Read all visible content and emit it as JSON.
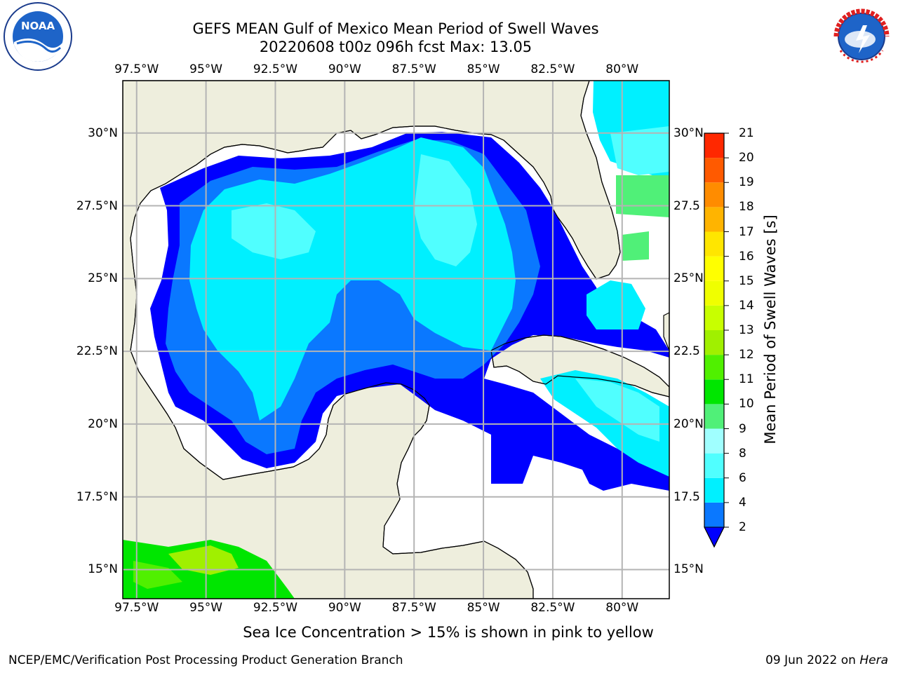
{
  "title": {
    "line1": "GEFS MEAN Gulf of Mexico Mean Period of Swell Waves",
    "line2": "20220608 t00z 096h fcst   Max: 13.05"
  },
  "logos": {
    "left": "NOAA",
    "right": "NATIONAL WEATHER SERVICE"
  },
  "map": {
    "lon_labels": [
      "97.5°W",
      "95°W",
      "92.5°W",
      "90°W",
      "87.5°W",
      "85°W",
      "82.5°W",
      "80°W"
    ],
    "lon_values": [
      -97.5,
      -95,
      -92.5,
      -90,
      -87.5,
      -85,
      -82.5,
      -80
    ],
    "lat_labels_left": [
      "30°N",
      "27.5°N",
      "25°N",
      "22.5°N",
      "20°N",
      "17.5°N",
      "15°N"
    ],
    "lat_labels_right": [
      "30°N",
      "27.5",
      "25°N",
      "22.5",
      "20°N",
      "17.5",
      "15°N"
    ],
    "lat_values": [
      30,
      27.5,
      25,
      22.5,
      20,
      17.5,
      15
    ],
    "extent": {
      "lon_min": -98,
      "lon_max": -78.3,
      "lat_min": 14,
      "lat_max": 31.8
    },
    "colors": {
      "land": "#eeeedd",
      "ocean_nodata": "#ffffff",
      "grid": "#b4b4b4"
    }
  },
  "colorbar": {
    "title": "Mean Period of Swell Waves [s]",
    "levels": [
      "2",
      "4",
      "6",
      "8",
      "9",
      "10",
      "11",
      "12",
      "13",
      "14",
      "15",
      "16",
      "17",
      "18",
      "19",
      "20",
      "21"
    ],
    "colors": [
      "#0a78ff",
      "#00f0ff",
      "#50ffff",
      "#a0ffff",
      "#50f078",
      "#00e600",
      "#50f000",
      "#a0f000",
      "#c8ff00",
      "#f0ff00",
      "#ffff00",
      "#ffe600",
      "#ffb400",
      "#ff8c00",
      "#ff5a00",
      "#ff2800"
    ],
    "extend_color": "#0000ff"
  },
  "note": "Sea Ice Concentration > 15% is shown in pink to yellow",
  "footer": {
    "left": "NCEP/EMC/Verification Post Processing Product Generation Branch",
    "right_date": "09 Jun 2022 on ",
    "right_machine": "Hera"
  }
}
